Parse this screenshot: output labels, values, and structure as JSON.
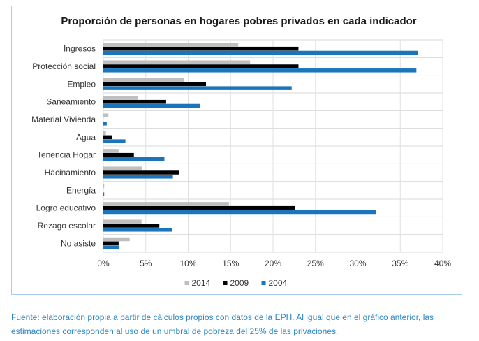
{
  "chart_data": {
    "type": "bar",
    "orientation": "horizontal",
    "title": "Proporción de personas en hogares pobres privados en cada indicador",
    "categories": [
      "Ingresos",
      "Protección social",
      "Empleo",
      "Saneamiento",
      "Material Vivienda",
      "Agua",
      "Tenencia Hogar",
      "Hacinamiento",
      "Energía",
      "Logro educativo",
      "Rezago escolar",
      "No asiste"
    ],
    "series": [
      {
        "name": "2014",
        "color": "#bfbfbf",
        "values": [
          15.9,
          17.3,
          9.5,
          4.1,
          0.6,
          0.3,
          1.8,
          4.6,
          0.1,
          14.8,
          4.5,
          3.1
        ]
      },
      {
        "name": "2009",
        "color": "#000000",
        "values": [
          23.0,
          23.0,
          12.1,
          7.4,
          0.0,
          1.0,
          3.6,
          8.9,
          0.0,
          22.6,
          6.6,
          1.8
        ]
      },
      {
        "name": "2004",
        "color": "#1a75bc",
        "values": [
          37.1,
          36.9,
          22.2,
          11.4,
          0.4,
          2.6,
          7.2,
          8.2,
          0.1,
          32.1,
          8.1,
          1.9
        ]
      }
    ],
    "xlim": [
      0,
      40
    ],
    "xticks": [
      0,
      5,
      10,
      15,
      20,
      25,
      30,
      35,
      40
    ],
    "xtick_labels": [
      "0%",
      "5%",
      "10%",
      "15%",
      "20%",
      "25%",
      "30%",
      "35%",
      "40%"
    ],
    "grid": true,
    "legend_position": "bottom"
  },
  "caption": {
    "line1": "Fuente: elaboración propia a partir de cálculos propios con datos de la EPH. Al igual que en el gráfico anterior, las",
    "line2": "estimaciones corresponden al uso de un umbral de pobreza del 25% de las privaciones."
  }
}
